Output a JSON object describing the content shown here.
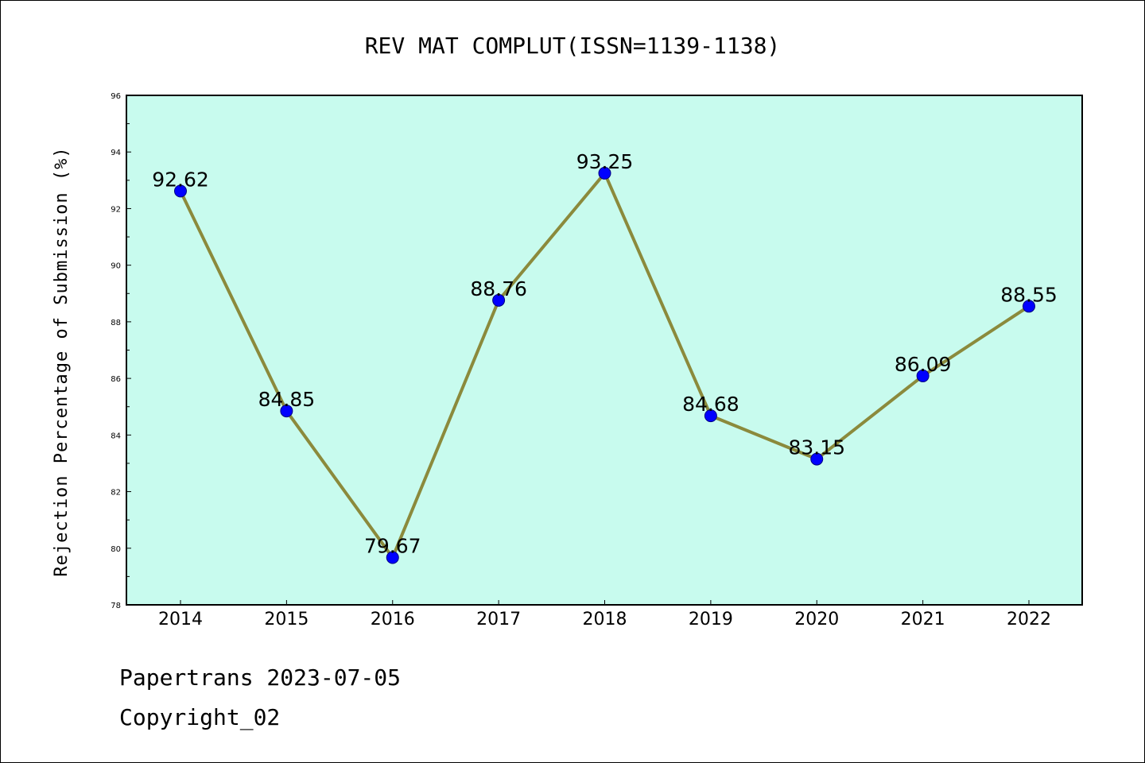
{
  "chart_data": {
    "type": "line",
    "title": "REV MAT COMPLUT(ISSN=1139-1138)",
    "ylabel": "Rejection Percentage of Submission (%)",
    "xlabel": "",
    "categories": [
      "2014",
      "2015",
      "2016",
      "2017",
      "2018",
      "2019",
      "2020",
      "2021",
      "2022"
    ],
    "values": [
      92.62,
      84.85,
      79.67,
      88.76,
      93.25,
      84.68,
      83.15,
      86.09,
      88.55
    ],
    "value_labels": [
      "92.62",
      "84.85",
      "79.67",
      "88.76",
      "93.25",
      "84.68",
      "83.15",
      "86.09",
      "88.55"
    ],
    "ylim": [
      78,
      96
    ],
    "yticks": [
      "78",
      "80",
      "82",
      "84",
      "86",
      "88",
      "90",
      "92",
      "94",
      "96"
    ],
    "grid": false,
    "colors": {
      "plot_background": "#c8fbee",
      "line": "#8b8a3c",
      "marker": "#0000ff",
      "marker_edge": "#000080"
    }
  },
  "footer": {
    "line1": "Papertrans 2023-07-05",
    "line2": "Copyright_02"
  }
}
